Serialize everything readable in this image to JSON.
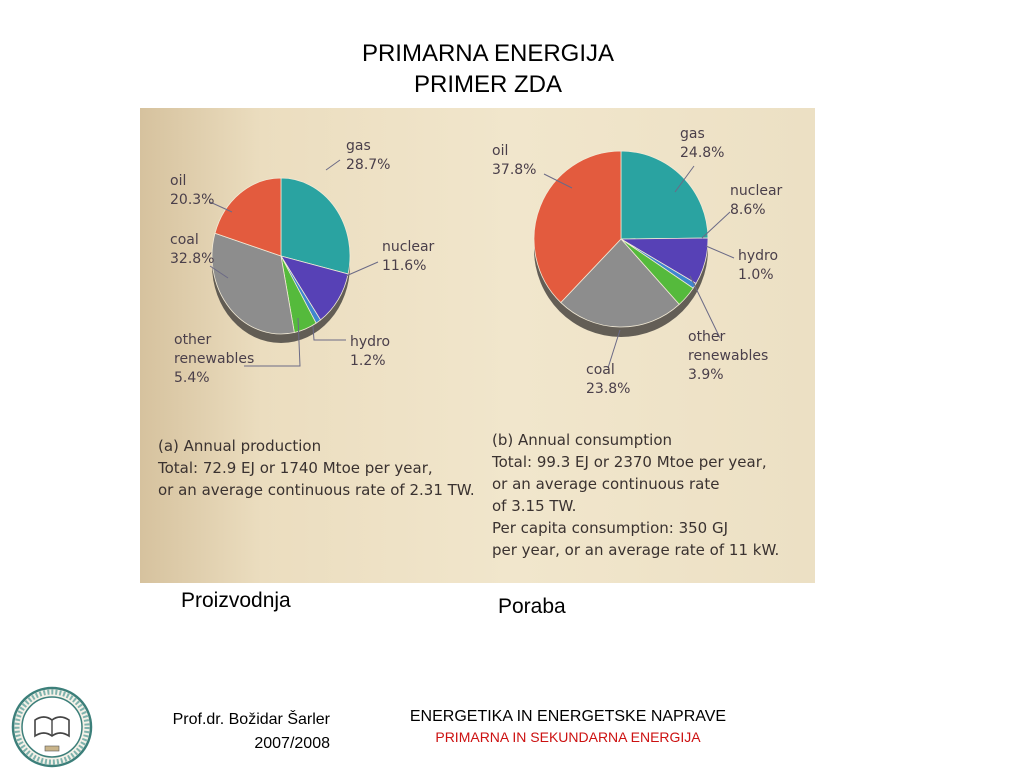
{
  "slide": {
    "title_line1": "PRIMARNA ENERGIJA",
    "title_line2": "PRIMER ZDA",
    "label_left": "Proizvodnja",
    "label_right": "Poraba"
  },
  "footer": {
    "author": "Prof.dr. Božidar Šarler",
    "year": "2007/2008",
    "course": "ENERGETIKA IN ENERGETSKE NAPRAVE",
    "subtitle": "PRIMARNA IN SEKUNDARNA ENERGIJA"
  },
  "colors": {
    "gas": "#2aa3a1",
    "nuclear": "#5741b6",
    "hydro": "#3e86cf",
    "other renewables": "#55ba3c",
    "coal": "#8d8d8d",
    "oil": "#e35b3e"
  },
  "chart_data": [
    {
      "type": "pie",
      "caption": [
        "(a) Annual production",
        "Total: 72.9 EJ or 1740 Mtoe per year,",
        "or an average continuous rate of 2.31 TW."
      ],
      "slices": [
        {
          "name": "gas",
          "value": 28.7,
          "label": [
            "gas",
            "28.7%"
          ]
        },
        {
          "name": "nuclear",
          "value": 11.6,
          "label": [
            "nuclear",
            "11.6%"
          ]
        },
        {
          "name": "hydro",
          "value": 1.2,
          "label": [
            "hydro",
            "1.2%"
          ]
        },
        {
          "name": "other renewables",
          "value": 5.4,
          "label": [
            "other",
            "renewables",
            "5.4%"
          ]
        },
        {
          "name": "coal",
          "value": 32.8,
          "label": [
            "coal",
            "32.8%"
          ]
        },
        {
          "name": "oil",
          "value": 20.3,
          "label": [
            "oil",
            "20.3%"
          ]
        }
      ]
    },
    {
      "type": "pie",
      "caption": [
        "(b) Annual consumption",
        "Total: 99.3 EJ or 2370 Mtoe per year,",
        "or an average continuous rate",
        "of 3.15 TW.",
        "Per capita consumption: 350 GJ",
        "per year, or an average rate of 11 kW."
      ],
      "slices": [
        {
          "name": "gas",
          "value": 24.8,
          "label": [
            "gas",
            "24.8%"
          ]
        },
        {
          "name": "nuclear",
          "value": 8.6,
          "label": [
            "nuclear",
            "8.6%"
          ]
        },
        {
          "name": "hydro",
          "value": 1.0,
          "label": [
            "hydro",
            "1.0%"
          ]
        },
        {
          "name": "other renewables",
          "value": 3.9,
          "label": [
            "other",
            "renewables",
            "3.9%"
          ]
        },
        {
          "name": "coal",
          "value": 23.8,
          "label": [
            "coal",
            "23.8%"
          ]
        },
        {
          "name": "oil",
          "value": 37.8,
          "label": [
            "oil",
            "37.8%"
          ]
        }
      ]
    }
  ]
}
